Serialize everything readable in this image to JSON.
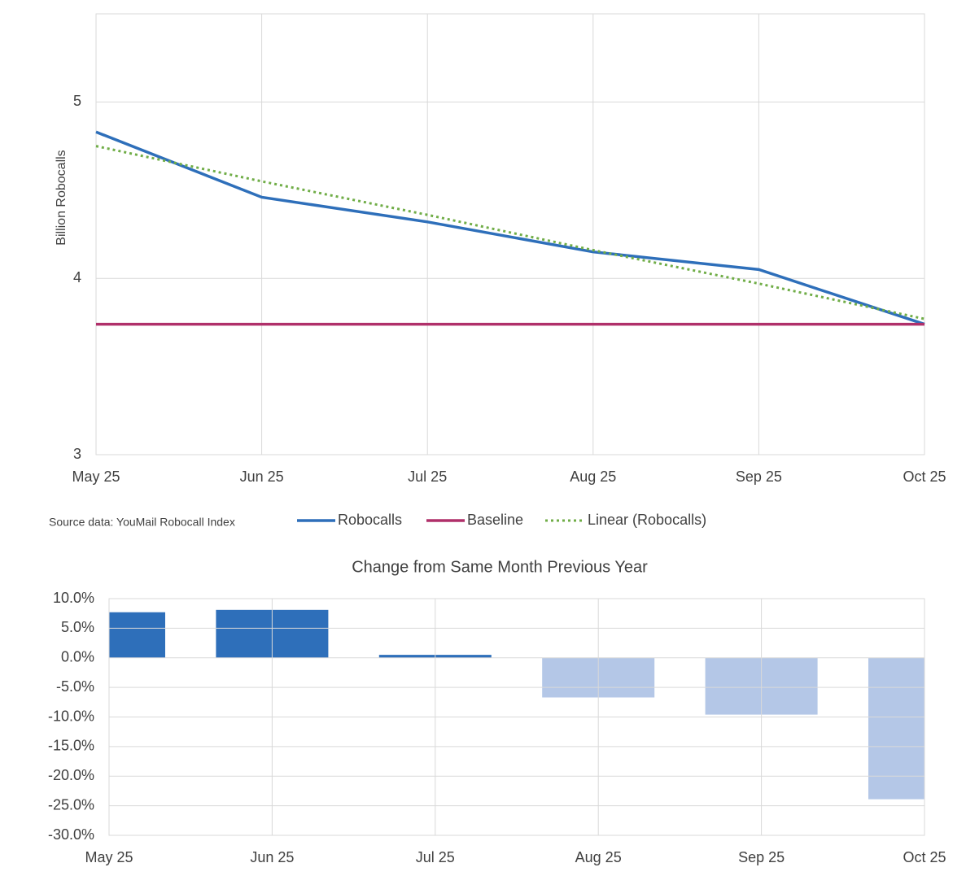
{
  "chart_data": [
    {
      "type": "line",
      "y_label": "Billion Robocalls",
      "annotation": "Source data: YouMail Robocall Index",
      "categories": [
        "May 25",
        "Jun 25",
        "Jul 25",
        "Aug 25",
        "Sep 25",
        "Oct 25"
      ],
      "ylim": [
        3,
        5.5
      ],
      "yticks": [
        3,
        4,
        5
      ],
      "grid": true,
      "series": [
        {
          "name": "Robocalls",
          "color": "#2e6fba",
          "line_style": "solid",
          "values": [
            4.83,
            4.46,
            4.32,
            4.15,
            4.05,
            3.74
          ]
        },
        {
          "name": "Baseline",
          "color": "#b0306a",
          "line_style": "solid",
          "values": [
            3.74,
            3.74,
            3.74,
            3.74,
            3.74,
            3.74
          ]
        },
        {
          "name": "Linear (Robocalls)",
          "color": "#70ad47",
          "line_style": "dotted",
          "values": [
            4.75,
            4.55,
            4.36,
            4.16,
            3.97,
            3.77
          ]
        }
      ]
    },
    {
      "type": "bar",
      "title": "Change from Same Month Previous Year",
      "categories": [
        "May 25",
        "Jun 25",
        "Jul 25",
        "Aug 25",
        "Sep 25",
        "Oct 25"
      ],
      "values": [
        7.7,
        8.1,
        0.5,
        -6.7,
        -9.6,
        -23.9
      ],
      "colors": [
        "#2e6fba",
        "#2e6fba",
        "#2e6fba",
        "#b4c7e7",
        "#b4c7e7",
        "#b4c7e7"
      ],
      "ylim": [
        -30,
        10
      ],
      "yticks": [
        {
          "value": -30,
          "label": "-30.0%"
        },
        {
          "value": -25,
          "label": "-25.0%"
        },
        {
          "value": -20,
          "label": "-20.0%"
        },
        {
          "value": -15,
          "label": "-15.0%"
        },
        {
          "value": -10,
          "label": "-10.0%"
        },
        {
          "value": -5,
          "label": "-5.0%"
        },
        {
          "value": 0,
          "label": "0.0%"
        },
        {
          "value": 5,
          "label": "5.0%"
        },
        {
          "value": 10,
          "label": "10.0%"
        }
      ],
      "grid": true
    }
  ]
}
